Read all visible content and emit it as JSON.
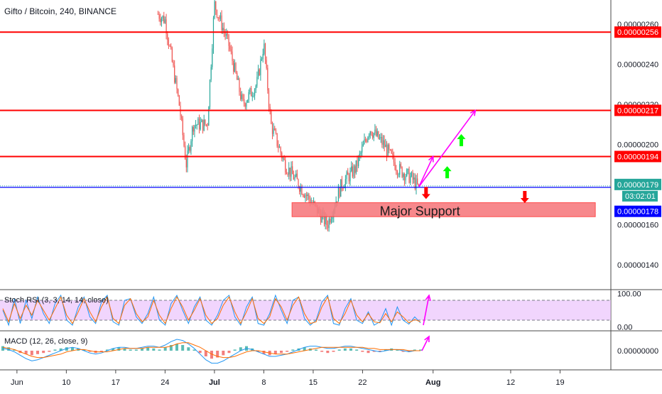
{
  "header": {
    "title": "Gifto / Bitcoin, 240, BINANCE"
  },
  "colors": {
    "up": "#26a69a",
    "down": "#ef5350",
    "resistance": "#ff0000",
    "current_price_line": "#0000ff",
    "support_zone": "#f77c80",
    "projection": "#ff00ff",
    "arrow_up": "#00ff00",
    "arrow_down": "#ff0000",
    "stoch_k": "#2196f3",
    "stoch_d": "#ff6d00",
    "stoch_band": "#e8b9fb"
  },
  "chart_data": [
    {
      "type": "candlestick",
      "title": "Gifto / Bitcoin, 240, BINANCE",
      "x_tick_labels": [
        "Jun",
        "10",
        "17",
        "24",
        "Jul",
        "8",
        "15",
        "22",
        "Aug",
        "12",
        "19"
      ],
      "y_tick_labels": [
        "0.00000260",
        "0.00000240",
        "0.00000220",
        "0.00000200",
        "0.00000160",
        "0.00000140"
      ],
      "ylim": [
        1.28e-06,
        2.72e-06
      ],
      "key_points": [
        {
          "date": "2019-06-23",
          "price": 2.65e-06
        },
        {
          "date": "2019-06-24",
          "price": 2.62e-06
        },
        {
          "date": "2019-06-26",
          "price": 2.2e-06
        },
        {
          "date": "2019-06-27",
          "price": 1.9e-06
        },
        {
          "date": "2019-06-28",
          "price": 2.1e-06
        },
        {
          "date": "2019-06-30",
          "price": 2.1e-06
        },
        {
          "date": "2019-07-01",
          "price": 2.7e-06
        },
        {
          "date": "2019-07-03",
          "price": 2.5e-06
        },
        {
          "date": "2019-07-05",
          "price": 2.2e-06
        },
        {
          "date": "2019-07-07",
          "price": 2.3e-06
        },
        {
          "date": "2019-07-08",
          "price": 2.5e-06
        },
        {
          "date": "2019-07-09",
          "price": 2.1e-06
        },
        {
          "date": "2019-07-11",
          "price": 1.9e-06
        },
        {
          "date": "2019-07-13",
          "price": 1.8e-06
        },
        {
          "date": "2019-07-15",
          "price": 1.7e-06
        },
        {
          "date": "2019-07-17",
          "price": 1.6e-06
        },
        {
          "date": "2019-07-18",
          "price": 1.7e-06
        },
        {
          "date": "2019-07-19",
          "price": 1.8e-06
        },
        {
          "date": "2019-07-21",
          "price": 1.88e-06
        },
        {
          "date": "2019-07-23",
          "price": 2.08e-06
        },
        {
          "date": "2019-07-25",
          "price": 2e-06
        },
        {
          "date": "2019-07-27",
          "price": 1.88e-06
        },
        {
          "date": "2019-07-29",
          "price": 1.83e-06
        },
        {
          "date": "2019-07-30",
          "price": 1.78e-06
        }
      ],
      "horizontal_levels": [
        {
          "price": 2.56e-06,
          "label": "0.00000256"
        },
        {
          "price": 2.17e-06,
          "label": "0.00000217"
        },
        {
          "price": 1.94e-06,
          "label": "0.00000194"
        }
      ],
      "current_price": {
        "price": 1.79e-06,
        "label": "0.00000179",
        "countdown": "03:02:01"
      },
      "blue_line": {
        "price": 1.78e-06,
        "label": "0.00000178"
      },
      "support_zone": {
        "label": "Major Support",
        "price_top": 1.71e-06,
        "price_bottom": 1.64e-06,
        "date_start": "2019-07-12",
        "date_end": "2019-08-24"
      },
      "projection_lines": [
        {
          "from": {
            "date": "2019-07-30",
            "price": 1.79e-06
          },
          "to": {
            "date": "2019-08-07",
            "price": 2.17e-06
          }
        },
        {
          "from": {
            "date": "2019-07-30",
            "price": 1.79e-06
          },
          "to": {
            "date": "2019-08-01",
            "price": 1.94e-06
          }
        }
      ],
      "signal_arrows": [
        {
          "direction": "up",
          "date": "2019-08-05",
          "price": 2.02e-06
        },
        {
          "direction": "up",
          "date": "2019-08-03",
          "price": 1.86e-06
        },
        {
          "direction": "down",
          "date": "2019-07-31",
          "price": 1.76e-06
        },
        {
          "direction": "down",
          "date": "2019-08-14",
          "price": 1.74e-06
        }
      ]
    },
    {
      "type": "line",
      "title": "Stoch RSI (3, 3, 14, 14, close)",
      "y_tick_labels": [
        "100.00",
        "0.00"
      ],
      "ylim": [
        -10,
        110
      ],
      "band": [
        20,
        80
      ],
      "series": [
        {
          "color": "#2196f3",
          "values": [
            50,
            5,
            85,
            10,
            80,
            25,
            90,
            40,
            10,
            70,
            95,
            20,
            5,
            60,
            90,
            30,
            10,
            75,
            95,
            15,
            5,
            80,
            85,
            30,
            10,
            40,
            90,
            20,
            5,
            70,
            95,
            50,
            10,
            60,
            90,
            20,
            5,
            35,
            80,
            95,
            30,
            5,
            60,
            90,
            10,
            5,
            40,
            95,
            50,
            10,
            80,
            90,
            25,
            5,
            20,
            75,
            95,
            10,
            5,
            55,
            85,
            20,
            10,
            45,
            5,
            15,
            55,
            5,
            60,
            20,
            8,
            30,
            12
          ]
        },
        {
          "color": "#ff6d00",
          "values": [
            55,
            15,
            70,
            25,
            65,
            35,
            80,
            50,
            20,
            55,
            90,
            35,
            10,
            45,
            85,
            45,
            15,
            60,
            90,
            25,
            10,
            65,
            85,
            40,
            15,
            30,
            80,
            35,
            10,
            55,
            90,
            60,
            20,
            50,
            85,
            35,
            10,
            25,
            65,
            90,
            45,
            10,
            45,
            85,
            25,
            10,
            30,
            85,
            60,
            20,
            65,
            90,
            40,
            10,
            15,
            60,
            90,
            25,
            10,
            40,
            80,
            35,
            15,
            40,
            15,
            12,
            40,
            15,
            45,
            30,
            12,
            22,
            15
          ]
        }
      ],
      "projection": {
        "from": 5,
        "to": 95
      }
    },
    {
      "type": "bar",
      "title": "MACD (12, 26, close, 9)",
      "y_tick_labels": [
        "0.00000000"
      ],
      "zero": 0,
      "histogram": [
        4,
        3,
        1,
        -2,
        -3,
        -4,
        -3,
        -2,
        -1,
        1,
        2,
        3,
        3,
        2,
        1,
        -1,
        -2,
        -1,
        1,
        2,
        3,
        2,
        1,
        1,
        2,
        3,
        2,
        1,
        3,
        5,
        6,
        5,
        3,
        1,
        -2,
        -5,
        -7,
        -6,
        -4,
        -2,
        1,
        3,
        4,
        2,
        -1,
        -3,
        -4,
        -3,
        -2,
        -1,
        1,
        2,
        3,
        2,
        1,
        -1,
        -2,
        -1,
        1,
        2,
        2,
        1,
        -1,
        -2,
        -1,
        -1,
        1,
        2,
        1,
        -1,
        -1,
        1,
        1
      ],
      "macd": [
        2,
        1,
        -1,
        -4,
        -7,
        -9,
        -8,
        -6,
        -4,
        -2,
        0,
        2,
        3,
        2,
        0,
        -2,
        -3,
        -2,
        0,
        2,
        3,
        3,
        2,
        2,
        3,
        4,
        4,
        3,
        5,
        8,
        10,
        9,
        6,
        2,
        -3,
        -8,
        -11,
        -11,
        -9,
        -6,
        -3,
        0,
        2,
        1,
        -1,
        -3,
        -5,
        -5,
        -4,
        -3,
        -1,
        1,
        3,
        4,
        4,
        3,
        2,
        2,
        3,
        4,
        4,
        3,
        2,
        1,
        0,
        -1,
        0,
        1,
        1,
        0,
        -1,
        0,
        0
      ],
      "signal": [
        3,
        2,
        1,
        -1,
        -3,
        -5,
        -6,
        -6,
        -5,
        -4,
        -3,
        -1,
        0,
        1,
        1,
        0,
        -1,
        -1,
        -1,
        0,
        1,
        2,
        2,
        2,
        2,
        3,
        3,
        3,
        3,
        4,
        6,
        7,
        7,
        5,
        3,
        0,
        -3,
        -5,
        -6,
        -6,
        -5,
        -3,
        -1,
        0,
        0,
        -1,
        -2,
        -3,
        -3,
        -3,
        -2,
        -1,
        0,
        1,
        2,
        3,
        3,
        3,
        3,
        3,
        3,
        3,
        3,
        2,
        2,
        1,
        1,
        1,
        1,
        1,
        0,
        0,
        0
      ],
      "projection": {
        "from": 0,
        "to": 5
      }
    }
  ]
}
